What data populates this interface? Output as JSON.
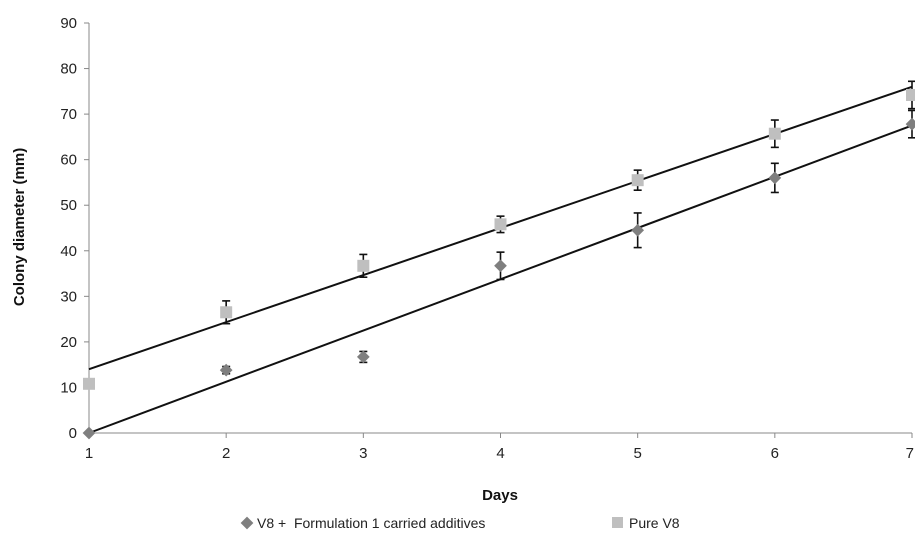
{
  "chart_data": {
    "type": "scatter",
    "title": "",
    "xlabel": "Days",
    "ylabel": "Colony diameter (mm)",
    "xlim": [
      1,
      7
    ],
    "ylim": [
      0,
      90
    ],
    "x_ticks": [
      "1",
      "2",
      "3",
      "4",
      "5",
      "6",
      "7"
    ],
    "y_ticks": [
      "0",
      "10",
      "20",
      "30",
      "40",
      "50",
      "60",
      "70",
      "80",
      "90"
    ],
    "grid": false,
    "legend_position": "bottom",
    "series": [
      {
        "name": "V8 +  Formulation 1 carried additives",
        "marker": "diamond",
        "color": "#7f7f7f",
        "x": [
          1,
          2,
          3,
          4,
          5,
          6,
          7
        ],
        "y": [
          0,
          13.8,
          16.7,
          36.7,
          44.5,
          56,
          67.8
        ],
        "error": [
          0,
          0.8,
          1.2,
          3,
          3.8,
          3.2,
          3
        ],
        "trendline": {
          "x": [
            1,
            7
          ],
          "y": [
            0,
            67.5
          ]
        }
      },
      {
        "name": "Pure V8",
        "marker": "square",
        "color": "#bfbfbf",
        "x": [
          1,
          2,
          3,
          4,
          5,
          6,
          7
        ],
        "y": [
          10.8,
          26.5,
          36.7,
          45.8,
          55.5,
          65.7,
          74.2
        ],
        "error": [
          0,
          2.5,
          2.5,
          1.8,
          2.2,
          3,
          3
        ],
        "trendline": {
          "x": [
            1,
            7
          ],
          "y": [
            14,
            76
          ]
        }
      }
    ]
  }
}
